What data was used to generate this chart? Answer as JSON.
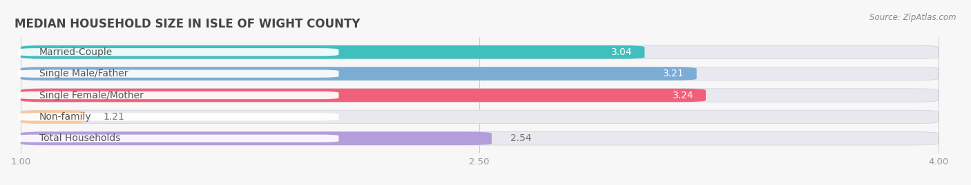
{
  "title": "MEDIAN HOUSEHOLD SIZE IN ISLE OF WIGHT COUNTY",
  "source": "Source: ZipAtlas.com",
  "categories": [
    "Married-Couple",
    "Single Male/Father",
    "Single Female/Mother",
    "Non-family",
    "Total Households"
  ],
  "values": [
    3.04,
    3.21,
    3.24,
    1.21,
    2.54
  ],
  "bar_colors": [
    "#40bfbf",
    "#7bacd4",
    "#f0607a",
    "#f5c9a0",
    "#b39ddb"
  ],
  "value_label_inside": [
    true,
    true,
    true,
    false,
    false
  ],
  "xlim_min": 1.0,
  "xlim_max": 4.0,
  "xticks": [
    1.0,
    2.5,
    4.0
  ],
  "xtick_labels": [
    "1.00",
    "2.50",
    "4.00"
  ],
  "bar_height": 0.62,
  "bar_gap": 0.12,
  "title_fontsize": 12,
  "tick_fontsize": 9.5,
  "label_fontsize": 10,
  "value_fontsize": 10,
  "bg_bar_color": "#e8e8ee",
  "background_color": "#f7f7f7",
  "plot_bg_color": "#ffffff",
  "text_color": "#555555",
  "value_inside_color": "#ffffff",
  "value_outside_color": "#777777"
}
